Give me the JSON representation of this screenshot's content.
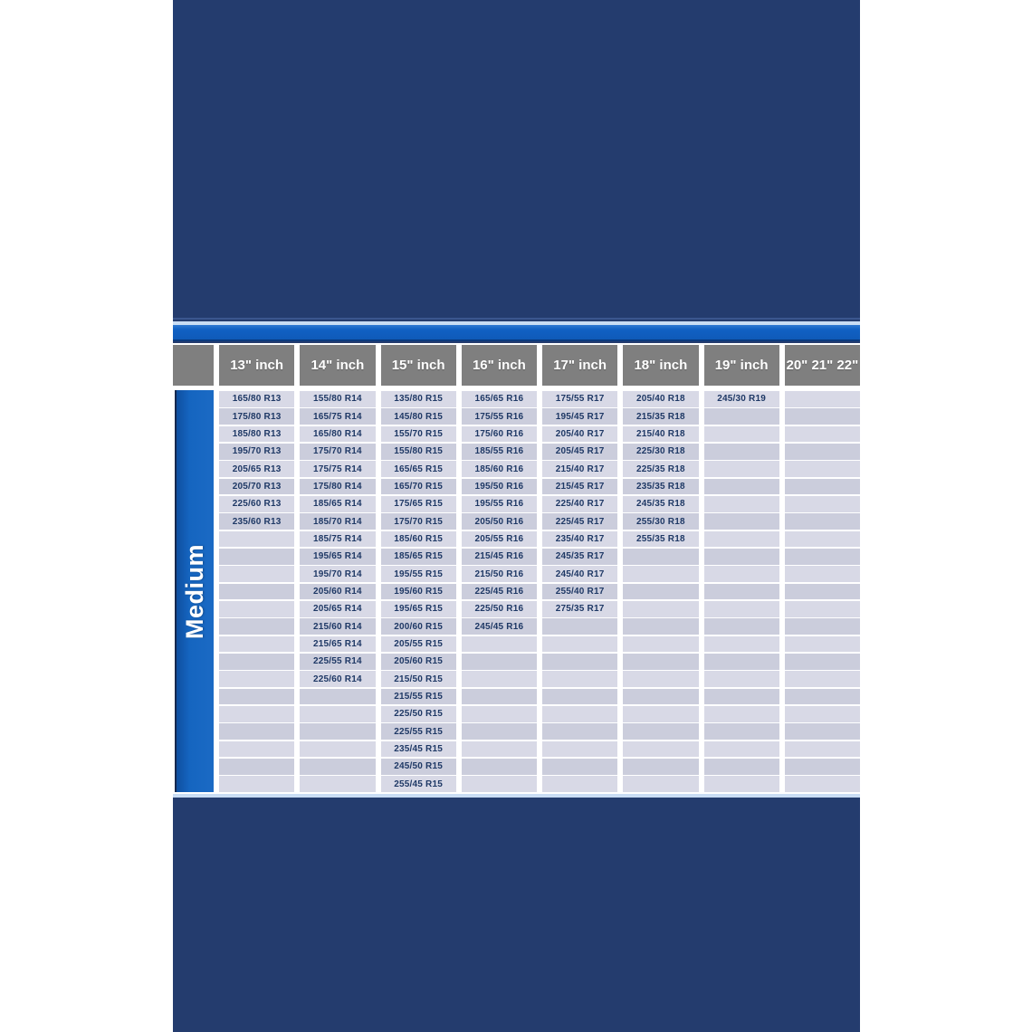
{
  "colors": {
    "panel_navy": "#243c6e",
    "accent_blue_bar": "#1161c4",
    "pale_blue_line": "#c9ddf4",
    "header_gray": "#7f7f7f",
    "row_light": "#d8d9e6",
    "row_dark": "#cbcddc",
    "cell_text_navy": "#1e3865",
    "medium_bar_blue": "#1565c0"
  },
  "side_label": "Medium",
  "chart_data": {
    "type": "table",
    "row_count": 23,
    "columns": [
      {
        "header": "13\" inch",
        "values": [
          "165/80 R13",
          "175/80 R13",
          "185/80 R13",
          "195/70 R13",
          "205/65 R13",
          "205/70 R13",
          "225/60 R13",
          "235/60 R13"
        ]
      },
      {
        "header": "14\" inch",
        "values": [
          "155/80 R14",
          "165/75 R14",
          "165/80 R14",
          "175/70 R14",
          "175/75 R14",
          "175/80 R14",
          "185/65 R14",
          "185/70 R14",
          "185/75 R14",
          "195/65 R14",
          "195/70 R14",
          "205/60 R14",
          "205/65 R14",
          "215/60 R14",
          "215/65 R14",
          "225/55 R14",
          "225/60 R14"
        ]
      },
      {
        "header": "15\" inch",
        "values": [
          "135/80 R15",
          "145/80 R15",
          "155/70 R15",
          "155/80 R15",
          "165/65 R15",
          "165/70 R15",
          "175/65 R15",
          "175/70 R15",
          "185/60 R15",
          "185/65 R15",
          "195/55 R15",
          "195/60 R15",
          "195/65 R15",
          "200/60 R15",
          "205/55 R15",
          "205/60 R15",
          "215/50 R15",
          "215/55 R15",
          "225/50 R15",
          "225/55 R15",
          "235/45 R15",
          "245/50 R15",
          "255/45 R15"
        ]
      },
      {
        "header": "16\" inch",
        "values": [
          "165/65 R16",
          "175/55 R16",
          "175/60 R16",
          "185/55 R16",
          "185/60 R16",
          "195/50 R16",
          "195/55 R16",
          "205/50 R16",
          "205/55 R16",
          "215/45 R16",
          "215/50 R16",
          "225/45 R16",
          "225/50 R16",
          "245/45 R16"
        ]
      },
      {
        "header": "17\" inch",
        "values": [
          "175/55 R17",
          "195/45 R17",
          "205/40 R17",
          "205/45 R17",
          "215/40 R17",
          "215/45 R17",
          "225/40 R17",
          "225/45 R17",
          "235/40 R17",
          "245/35 R17",
          "245/40 R17",
          "255/40 R17",
          "275/35 R17"
        ]
      },
      {
        "header": "18\" inch",
        "values": [
          "205/40 R18",
          "215/35 R18",
          "215/40 R18",
          "225/30 R18",
          "225/35 R18",
          "235/35 R18",
          "245/35 R18",
          "255/30 R18",
          "255/35 R18"
        ]
      },
      {
        "header": "19\" inch",
        "values": [
          "245/30 R19"
        ]
      },
      {
        "header": "20\" 21\" 22\"",
        "values": []
      }
    ]
  }
}
